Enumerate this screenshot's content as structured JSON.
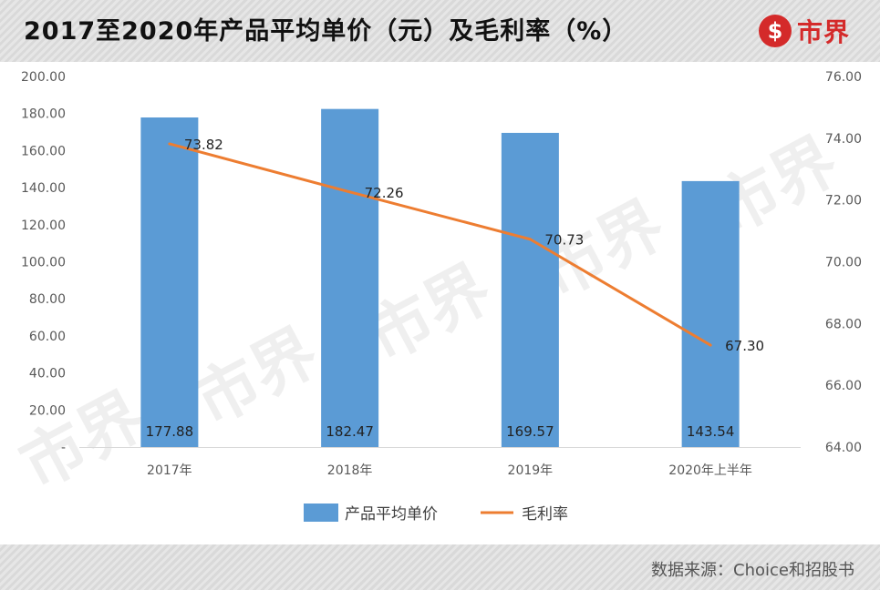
{
  "header": {
    "title": "2017至2020年产品平均单价（元）及毛利率（%）",
    "logo_mark": "$",
    "logo_text": "市界"
  },
  "watermark": "市界",
  "footer": {
    "source": "数据来源：Choice和招股书"
  },
  "colors": {
    "bar": "#5b9bd5",
    "line": "#ed7d31",
    "logo": "#d42a2a"
  },
  "chart_data": {
    "type": "bar",
    "categories": [
      "2017年",
      "2018年",
      "2019年",
      "2020年上半年"
    ],
    "series": [
      {
        "name": "产品平均单价",
        "type": "bar",
        "axis": "left",
        "values": [
          177.88,
          182.47,
          169.57,
          143.54
        ],
        "labels": [
          "177.88",
          "182.47",
          "169.57",
          "143.54"
        ]
      },
      {
        "name": "毛利率",
        "type": "line",
        "axis": "right",
        "values": [
          73.82,
          72.26,
          70.73,
          67.3
        ],
        "labels": [
          "73.82",
          "72.26",
          "70.73",
          "67.30"
        ]
      }
    ],
    "y_left": {
      "min": 0,
      "max": 200,
      "ticks": [
        "-",
        "20.00",
        "40.00",
        "60.00",
        "80.00",
        "100.00",
        "120.00",
        "140.00",
        "160.00",
        "180.00",
        "200.00"
      ]
    },
    "y_right": {
      "min": 64,
      "max": 76,
      "ticks": [
        "64.00",
        "66.00",
        "68.00",
        "70.00",
        "72.00",
        "74.00",
        "76.00"
      ]
    },
    "grid": false,
    "legend": "bottom"
  }
}
